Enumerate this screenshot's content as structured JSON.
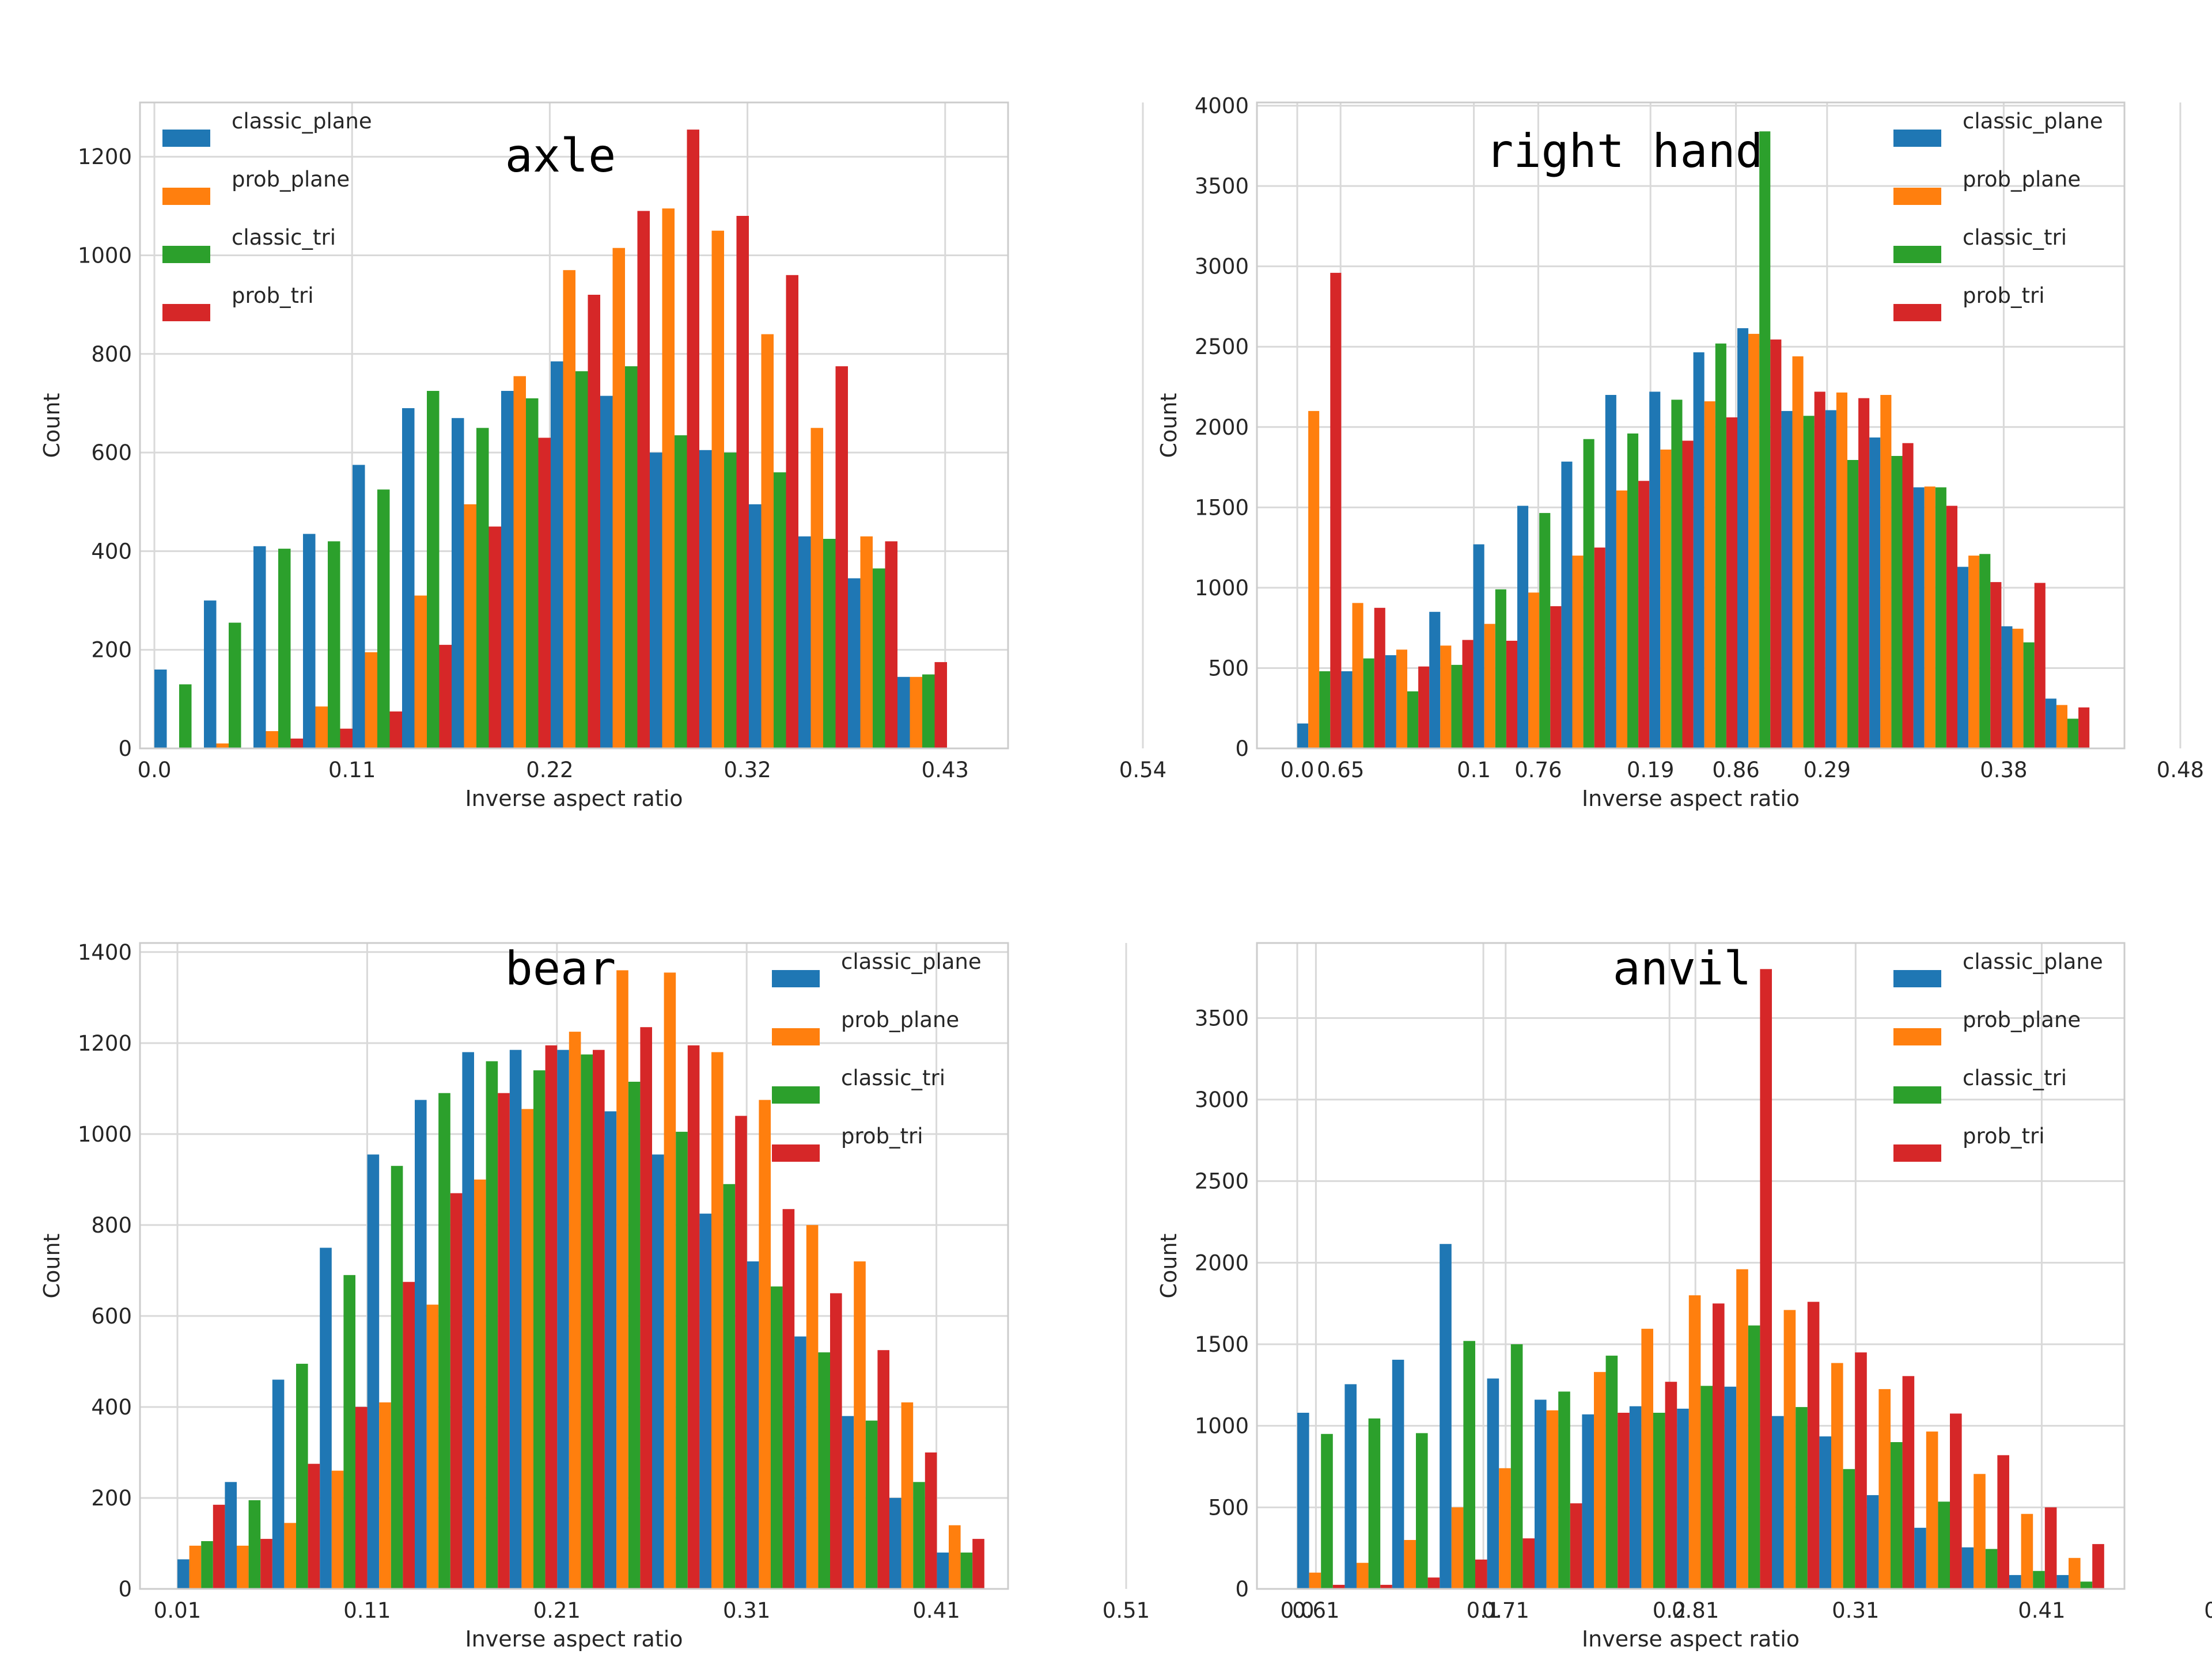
{
  "colors": {
    "classic_plane": "#1f77b4",
    "prob_plane": "#ff7f0e",
    "classic_tri": "#2ca02c",
    "prob_tri": "#d62728"
  },
  "chart_data": [
    {
      "type": "bar",
      "title": "axle",
      "xlabel": "Inverse aspect ratio",
      "ylabel": "Count",
      "ylim": [
        0,
        1310
      ],
      "yticks": [
        0,
        200,
        400,
        600,
        800,
        1000,
        1200
      ],
      "xticks": [
        "0.0",
        "0.11",
        "0.22",
        "0.32",
        "0.43",
        "0.54",
        "0.65",
        "0.76",
        "0.86"
      ],
      "grid": true,
      "legend": "top-left",
      "series": [
        {
          "name": "classic_plane",
          "values": [
            160,
            300,
            410,
            435,
            575,
            690,
            670,
            725,
            785,
            715,
            600,
            605,
            495,
            430,
            345,
            145
          ]
        },
        {
          "name": "prob_plane",
          "values": [
            0,
            10,
            35,
            85,
            195,
            310,
            495,
            755,
            970,
            1015,
            1095,
            1050,
            840,
            650,
            430,
            145
          ]
        },
        {
          "name": "classic_tri",
          "values": [
            130,
            255,
            405,
            420,
            525,
            725,
            650,
            710,
            765,
            775,
            635,
            600,
            560,
            425,
            365,
            150
          ]
        },
        {
          "name": "prob_tri",
          "values": [
            0,
            0,
            20,
            40,
            75,
            210,
            450,
            630,
            920,
            1090,
            1255,
            1080,
            960,
            775,
            420,
            175
          ]
        }
      ]
    },
    {
      "type": "bar",
      "title": "right hand",
      "xlabel": "Inverse aspect ratio",
      "ylabel": "Count",
      "ylim": [
        0,
        4020
      ],
      "yticks": [
        0,
        500,
        1000,
        1500,
        2000,
        2500,
        3000,
        3500,
        4000
      ],
      "xticks": [
        "0.0",
        "0.1",
        "0.19",
        "0.29",
        "0.38",
        "0.48",
        "0.58",
        "0.67",
        "0.77",
        "0.86"
      ],
      "grid": true,
      "legend": "top-right",
      "series": [
        {
          "name": "classic_plane",
          "values": [
            155,
            480,
            580,
            850,
            1270,
            1510,
            1785,
            2200,
            2220,
            2465,
            2615,
            2100,
            2105,
            1935,
            1625,
            1130,
            760,
            310
          ]
        },
        {
          "name": "prob_plane",
          "values": [
            2100,
            905,
            615,
            640,
            775,
            970,
            1200,
            1605,
            1860,
            2160,
            2580,
            2440,
            2215,
            2200,
            1630,
            1200,
            745,
            270
          ]
        },
        {
          "name": "classic_tri",
          "values": [
            480,
            560,
            355,
            520,
            990,
            1465,
            1925,
            1960,
            2170,
            2520,
            3840,
            2070,
            1795,
            1820,
            1625,
            1210,
            660,
            185
          ]
        },
        {
          "name": "prob_tri",
          "values": [
            2960,
            875,
            510,
            675,
            670,
            885,
            1250,
            1665,
            1915,
            2060,
            2545,
            2220,
            2180,
            1900,
            1510,
            1035,
            1030,
            255
          ]
        }
      ]
    },
    {
      "type": "bar",
      "title": "bear",
      "xlabel": "Inverse aspect ratio",
      "ylabel": "Count",
      "ylim": [
        0,
        1420
      ],
      "yticks": [
        0,
        200,
        400,
        600,
        800,
        1000,
        1200,
        1400
      ],
      "xticks": [
        "0.01",
        "0.11",
        "0.21",
        "0.31",
        "0.41",
        "0.51",
        "0.61",
        "0.71",
        "0.81"
      ],
      "grid": true,
      "legend": "top-right",
      "series": [
        {
          "name": "classic_plane",
          "values": [
            65,
            235,
            460,
            750,
            955,
            1075,
            1180,
            1185,
            1185,
            1050,
            955,
            825,
            720,
            555,
            380,
            200,
            80
          ]
        },
        {
          "name": "prob_plane",
          "values": [
            95,
            95,
            145,
            260,
            410,
            625,
            900,
            1055,
            1225,
            1360,
            1355,
            1180,
            1075,
            800,
            720,
            410,
            140
          ]
        },
        {
          "name": "classic_tri",
          "values": [
            105,
            195,
            495,
            690,
            930,
            1090,
            1160,
            1140,
            1175,
            1115,
            1005,
            890,
            665,
            520,
            370,
            235,
            80
          ]
        },
        {
          "name": "prob_tri",
          "values": [
            185,
            110,
            275,
            400,
            675,
            870,
            1090,
            1195,
            1185,
            1235,
            1195,
            1040,
            835,
            650,
            525,
            300,
            110
          ]
        }
      ]
    },
    {
      "type": "bar",
      "title": "anvil",
      "xlabel": "Inverse aspect ratio",
      "ylabel": "Count",
      "ylim": [
        0,
        3960
      ],
      "yticks": [
        0,
        500,
        1000,
        1500,
        2000,
        2500,
        3000,
        3500
      ],
      "xticks": [
        "0.0",
        "0.1",
        "0.2",
        "0.31",
        "0.41",
        "0.51",
        "0.61",
        "0.71",
        "0.81"
      ],
      "grid": true,
      "legend": "top-right",
      "series": [
        {
          "name": "classic_plane",
          "values": [
            1080,
            1255,
            1405,
            2115,
            1290,
            1160,
            1070,
            1120,
            1105,
            1240,
            1060,
            935,
            575,
            375,
            255,
            85,
            85
          ]
        },
        {
          "name": "prob_plane",
          "values": [
            100,
            160,
            300,
            500,
            740,
            1095,
            1330,
            1595,
            1800,
            1960,
            1710,
            1385,
            1225,
            965,
            705,
            460,
            190
          ]
        },
        {
          "name": "classic_tri",
          "values": [
            950,
            1045,
            955,
            1520,
            1500,
            1210,
            1430,
            1080,
            1245,
            1615,
            1115,
            735,
            900,
            535,
            245,
            110,
            45
          ]
        },
        {
          "name": "prob_tri",
          "values": [
            25,
            25,
            70,
            180,
            310,
            525,
            1080,
            1270,
            1750,
            3800,
            1760,
            1450,
            1305,
            1075,
            820,
            500,
            275
          ]
        }
      ]
    }
  ]
}
